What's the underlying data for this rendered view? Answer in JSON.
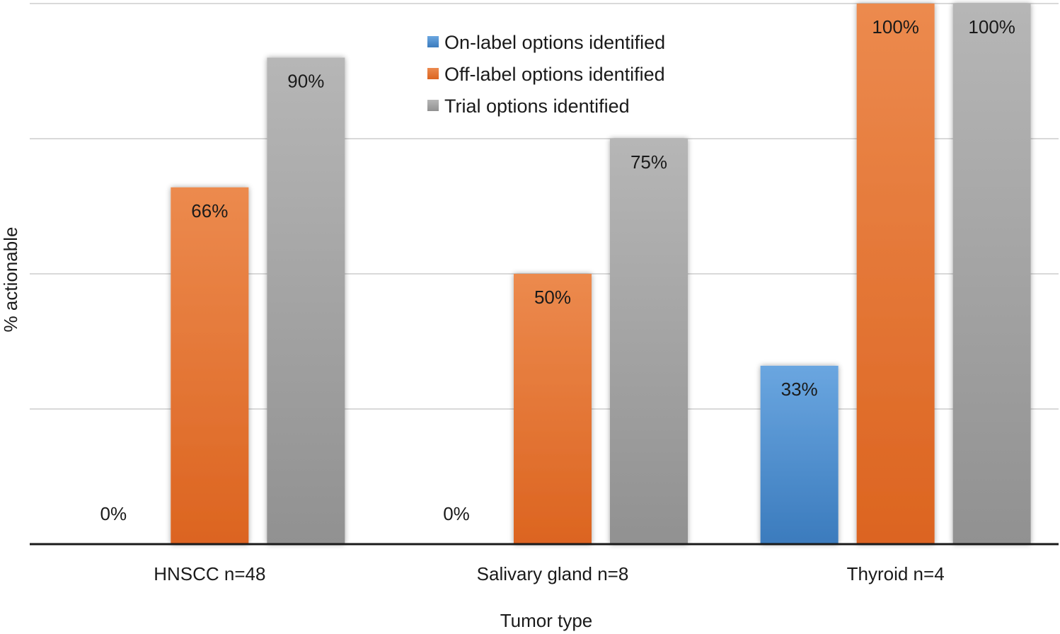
{
  "chart_data": {
    "type": "bar",
    "categories": [
      "HNSCC n=48",
      "Salivary gland n=8",
      "Thyroid n=4"
    ],
    "series": [
      {
        "name": "On-label options identified",
        "values": [
          0,
          0,
          33
        ],
        "labels": [
          "0%",
          "0%",
          "33%"
        ],
        "color": "#4a86c8"
      },
      {
        "name": "Off-label options identified",
        "values": [
          66,
          50,
          100
        ],
        "labels": [
          "66%",
          "50%",
          "100%"
        ],
        "color": "#e8732a"
      },
      {
        "name": "Trial options identified",
        "values": [
          90,
          75,
          100
        ],
        "labels": [
          "90%",
          "75%",
          "100%"
        ],
        "color": "#a5a5a5"
      }
    ],
    "xlabel": "Tumor type",
    "ylabel": "% actionable",
    "ylim": [
      0,
      100
    ],
    "grid": true,
    "legend": "top-center"
  }
}
